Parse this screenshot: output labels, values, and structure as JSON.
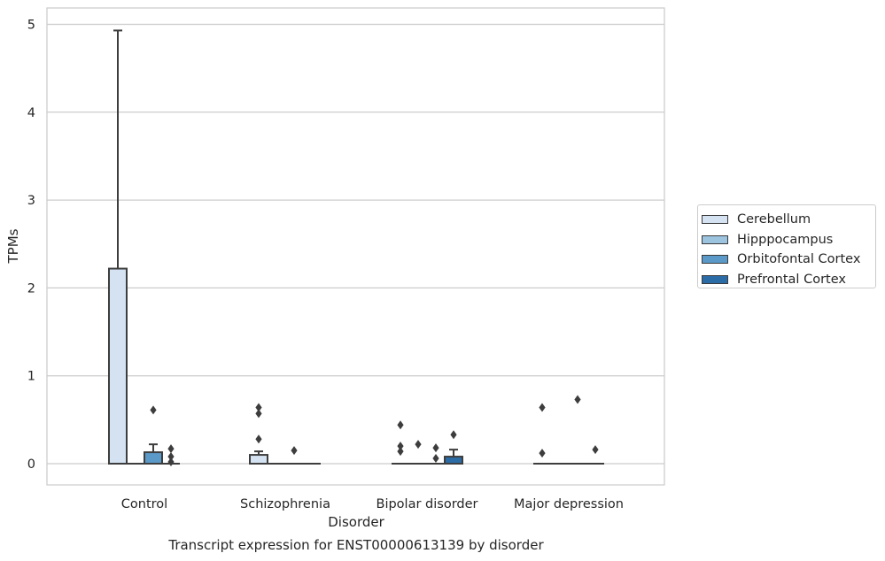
{
  "chart_data": {
    "type": "box",
    "title": "Transcript expression for ENST00000613139 by disorder",
    "xlabel": "Disorder",
    "ylabel": "TPMs",
    "ylim": [
      -0.24,
      5.19
    ],
    "yticks": [
      0,
      1,
      2,
      3,
      4,
      5
    ],
    "grid": "horizontal",
    "legend_position": "right",
    "categories": [
      "Control",
      "Schizophrenia",
      "Bipolar disorder",
      "Major depression"
    ],
    "series": [
      {
        "name": "Cerebellum",
        "color": "#d4e2f1",
        "boxes": [
          {
            "q1": 0,
            "median": 0,
            "q3": 2.22,
            "whisker_low": 0,
            "whisker_high": 4.93,
            "outliers": []
          },
          {
            "q1": 0,
            "median": 0,
            "q3": 0.1,
            "whisker_low": 0,
            "whisker_high": 0.14,
            "outliers": [
              0.28,
              0.57,
              0.64
            ]
          },
          {
            "q1": 0,
            "median": 0,
            "q3": 0,
            "whisker_low": 0,
            "whisker_high": 0,
            "outliers": [
              0.14,
              0.2,
              0.44
            ]
          },
          {
            "q1": 0,
            "median": 0,
            "q3": 0,
            "whisker_low": 0,
            "whisker_high": 0,
            "outliers": [
              0.12,
              0.64
            ]
          }
        ]
      },
      {
        "name": "Hipppocampus",
        "color": "#9dc4df",
        "boxes": [
          {
            "q1": 0,
            "median": 0,
            "q3": 0,
            "whisker_low": 0,
            "whisker_high": 0,
            "outliers": []
          },
          {
            "q1": 0,
            "median": 0,
            "q3": 0,
            "whisker_low": 0,
            "whisker_high": 0,
            "outliers": []
          },
          {
            "q1": 0,
            "median": 0,
            "q3": 0,
            "whisker_low": 0,
            "whisker_high": 0,
            "outliers": [
              0.22
            ]
          },
          {
            "q1": 0,
            "median": 0,
            "q3": 0,
            "whisker_low": 0,
            "whisker_high": 0,
            "outliers": []
          }
        ]
      },
      {
        "name": "Orbitofontal Cortex",
        "color": "#5b9ac8",
        "boxes": [
          {
            "q1": 0,
            "median": 0,
            "q3": 0.13,
            "whisker_low": 0,
            "whisker_high": 0.22,
            "outliers": [
              0.61
            ]
          },
          {
            "q1": 0,
            "median": 0,
            "q3": 0,
            "whisker_low": 0,
            "whisker_high": 0,
            "outliers": [
              0.15
            ]
          },
          {
            "q1": 0,
            "median": 0,
            "q3": 0,
            "whisker_low": 0,
            "whisker_high": 0,
            "outliers": [
              0.06,
              0.18
            ]
          },
          {
            "q1": 0,
            "median": 0,
            "q3": 0,
            "whisker_low": 0,
            "whisker_high": 0,
            "outliers": [
              0.73
            ]
          }
        ]
      },
      {
        "name": "Prefrontal Cortex",
        "color": "#2c6ca6",
        "boxes": [
          {
            "q1": 0,
            "median": 0,
            "q3": 0,
            "whisker_low": 0,
            "whisker_high": 0,
            "outliers": [
              0.02,
              0.08,
              0.17
            ]
          },
          {
            "q1": 0,
            "median": 0,
            "q3": 0,
            "whisker_low": 0,
            "whisker_high": 0,
            "outliers": []
          },
          {
            "q1": 0,
            "median": 0,
            "q3": 0.08,
            "whisker_low": 0,
            "whisker_high": 0.16,
            "outliers": [
              0.33
            ]
          },
          {
            "q1": 0,
            "median": 0,
            "q3": 0,
            "whisker_low": 0,
            "whisker_high": 0,
            "outliers": [
              0.16
            ]
          }
        ]
      }
    ]
  }
}
